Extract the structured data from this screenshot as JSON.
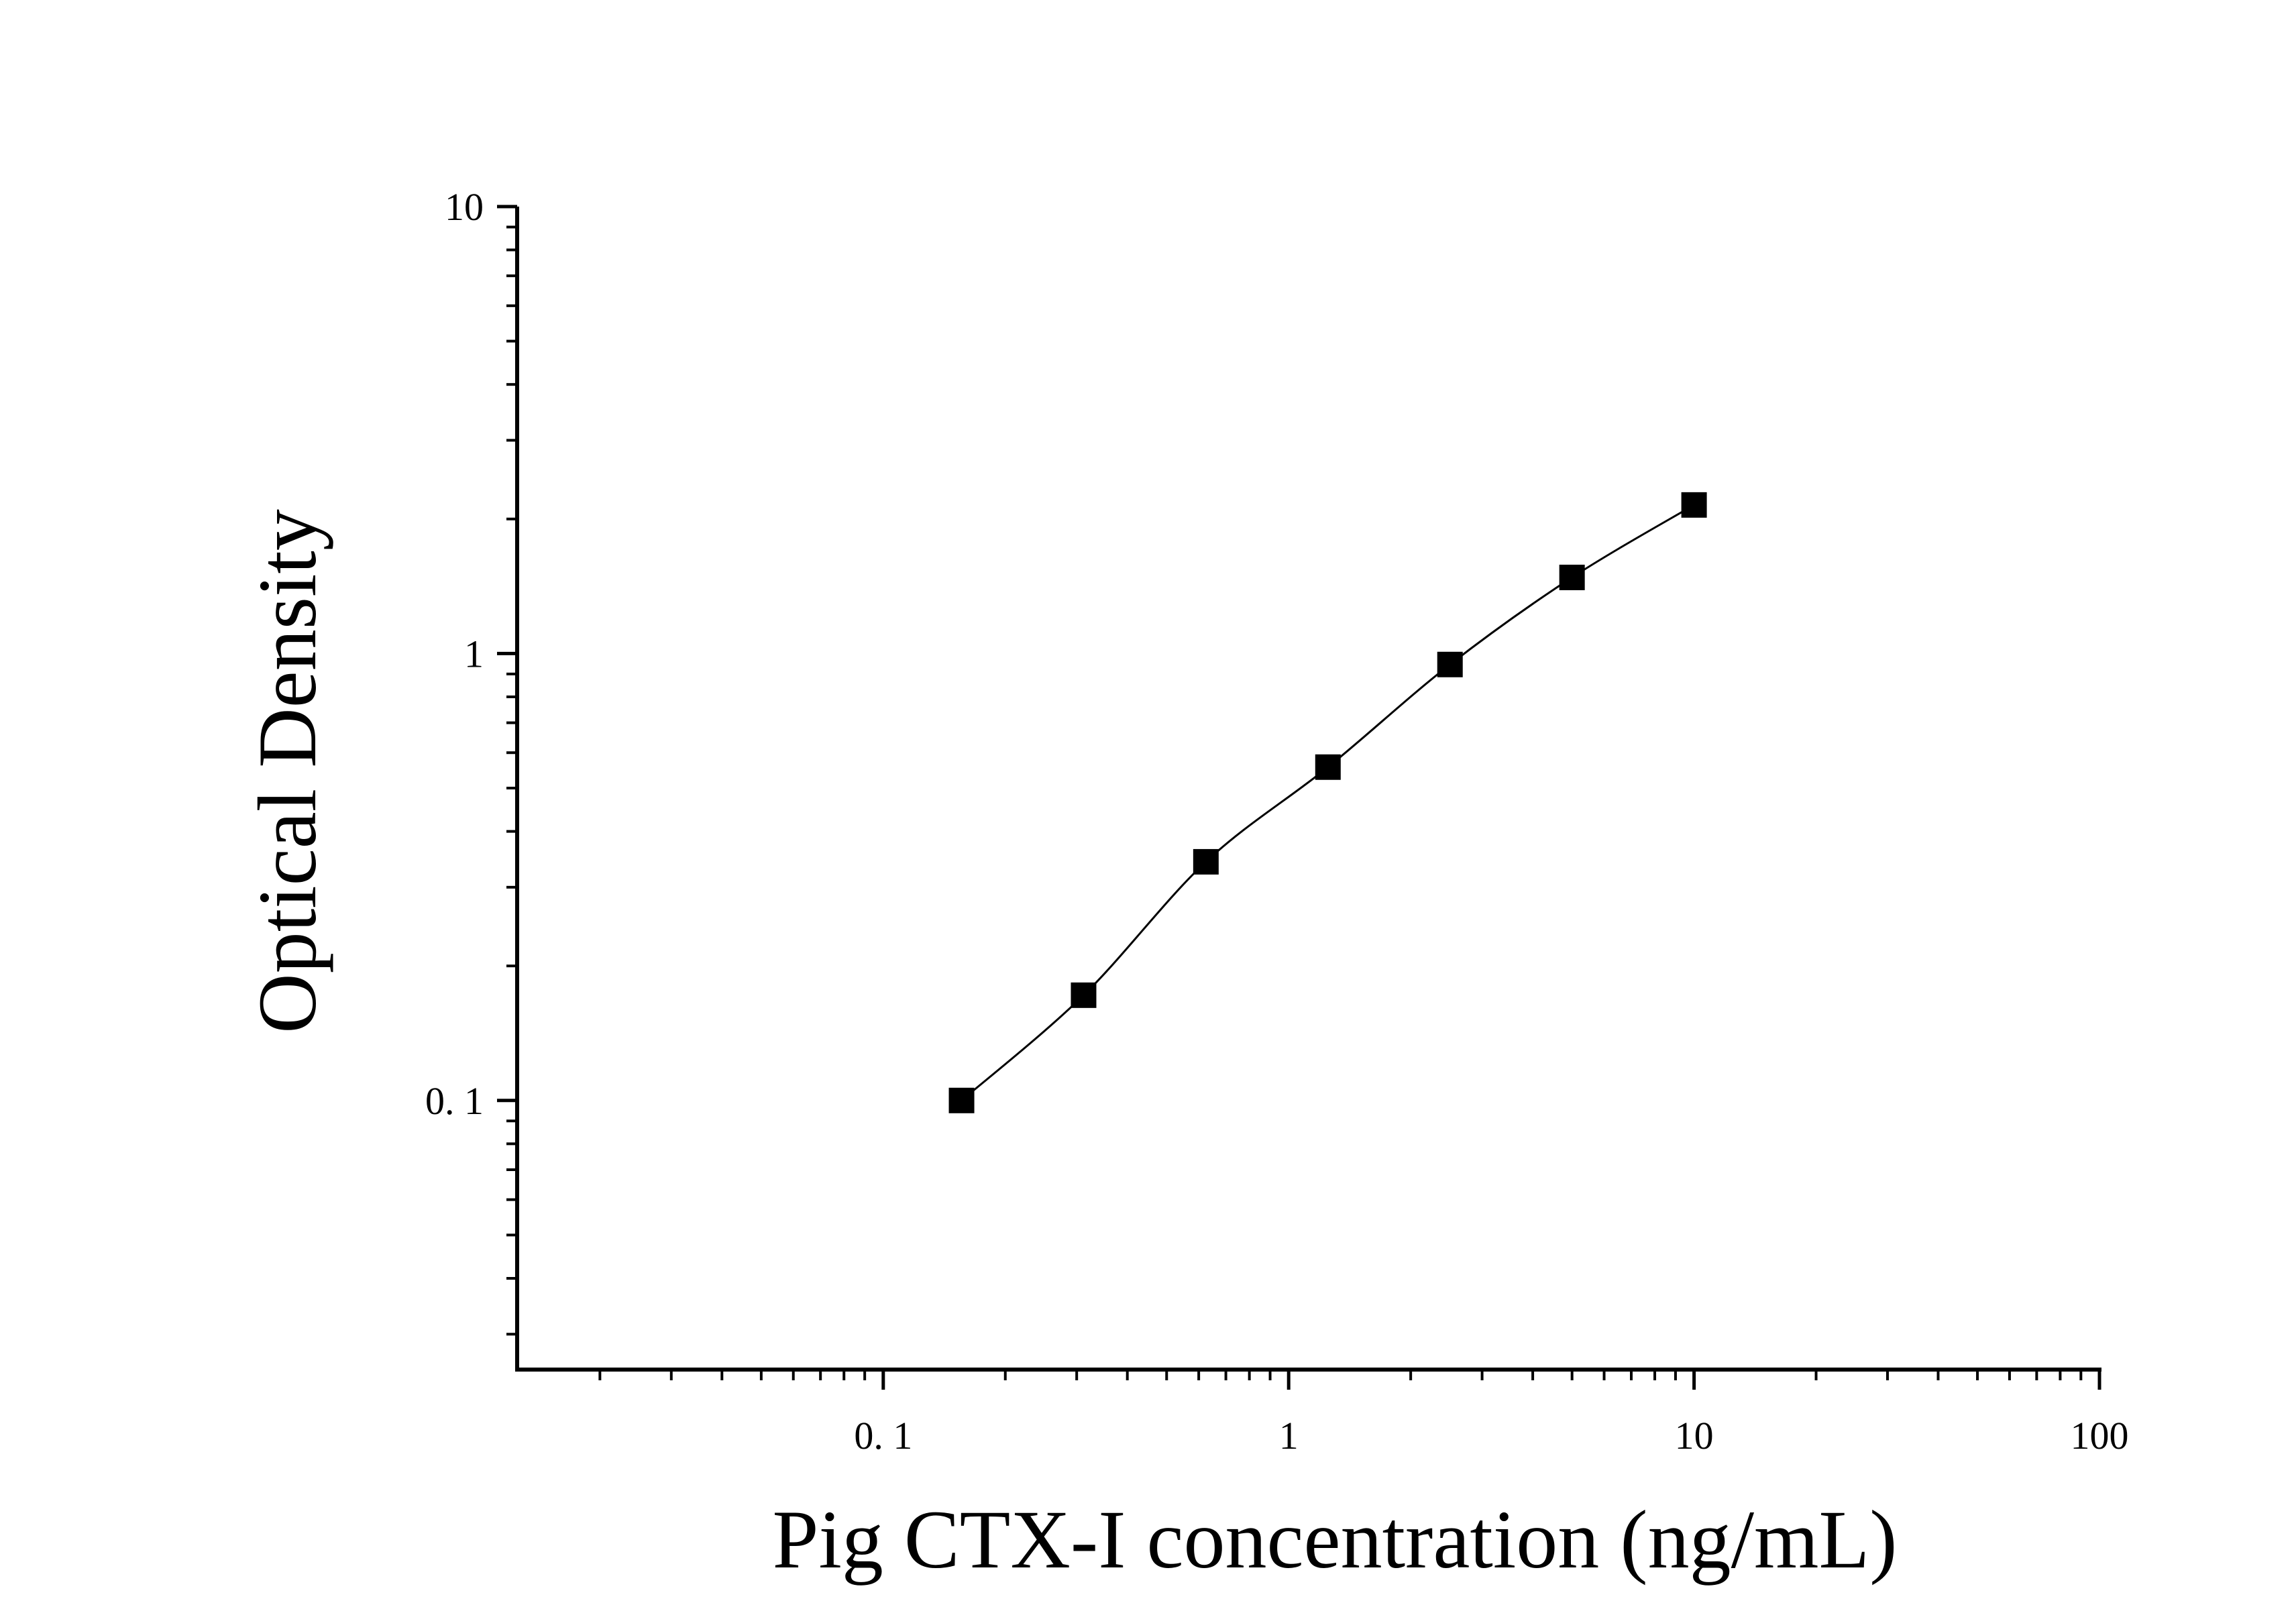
{
  "chart_data": {
    "type": "scatter",
    "title": "",
    "xlabel": "Pig CTX-I concentration (ng/mL)",
    "ylabel": "Optical Density",
    "xscale": "log",
    "yscale": "log",
    "xlim": [
      0.0125,
      100
    ],
    "ylim": [
      0.025,
      10
    ],
    "x_ticks": [
      {
        "value": 0.1,
        "label": "0. 1"
      },
      {
        "value": 1,
        "label": "1"
      },
      {
        "value": 10,
        "label": "10"
      },
      {
        "value": 100,
        "label": "100"
      }
    ],
    "y_ticks": [
      {
        "value": 0.1,
        "label": "0. 1"
      },
      {
        "value": 1,
        "label": "1"
      },
      {
        "value": 10,
        "label": "10"
      }
    ],
    "grid": false,
    "legend": "none",
    "marker": "square",
    "color": "#000000",
    "series": [
      {
        "x": [
          0.156,
          0.312,
          0.625,
          1.25,
          2.5,
          5,
          10
        ],
        "y": [
          0.1,
          0.172,
          0.342,
          0.557,
          0.945,
          1.48,
          2.15
        ]
      }
    ],
    "fit_curve": true
  }
}
